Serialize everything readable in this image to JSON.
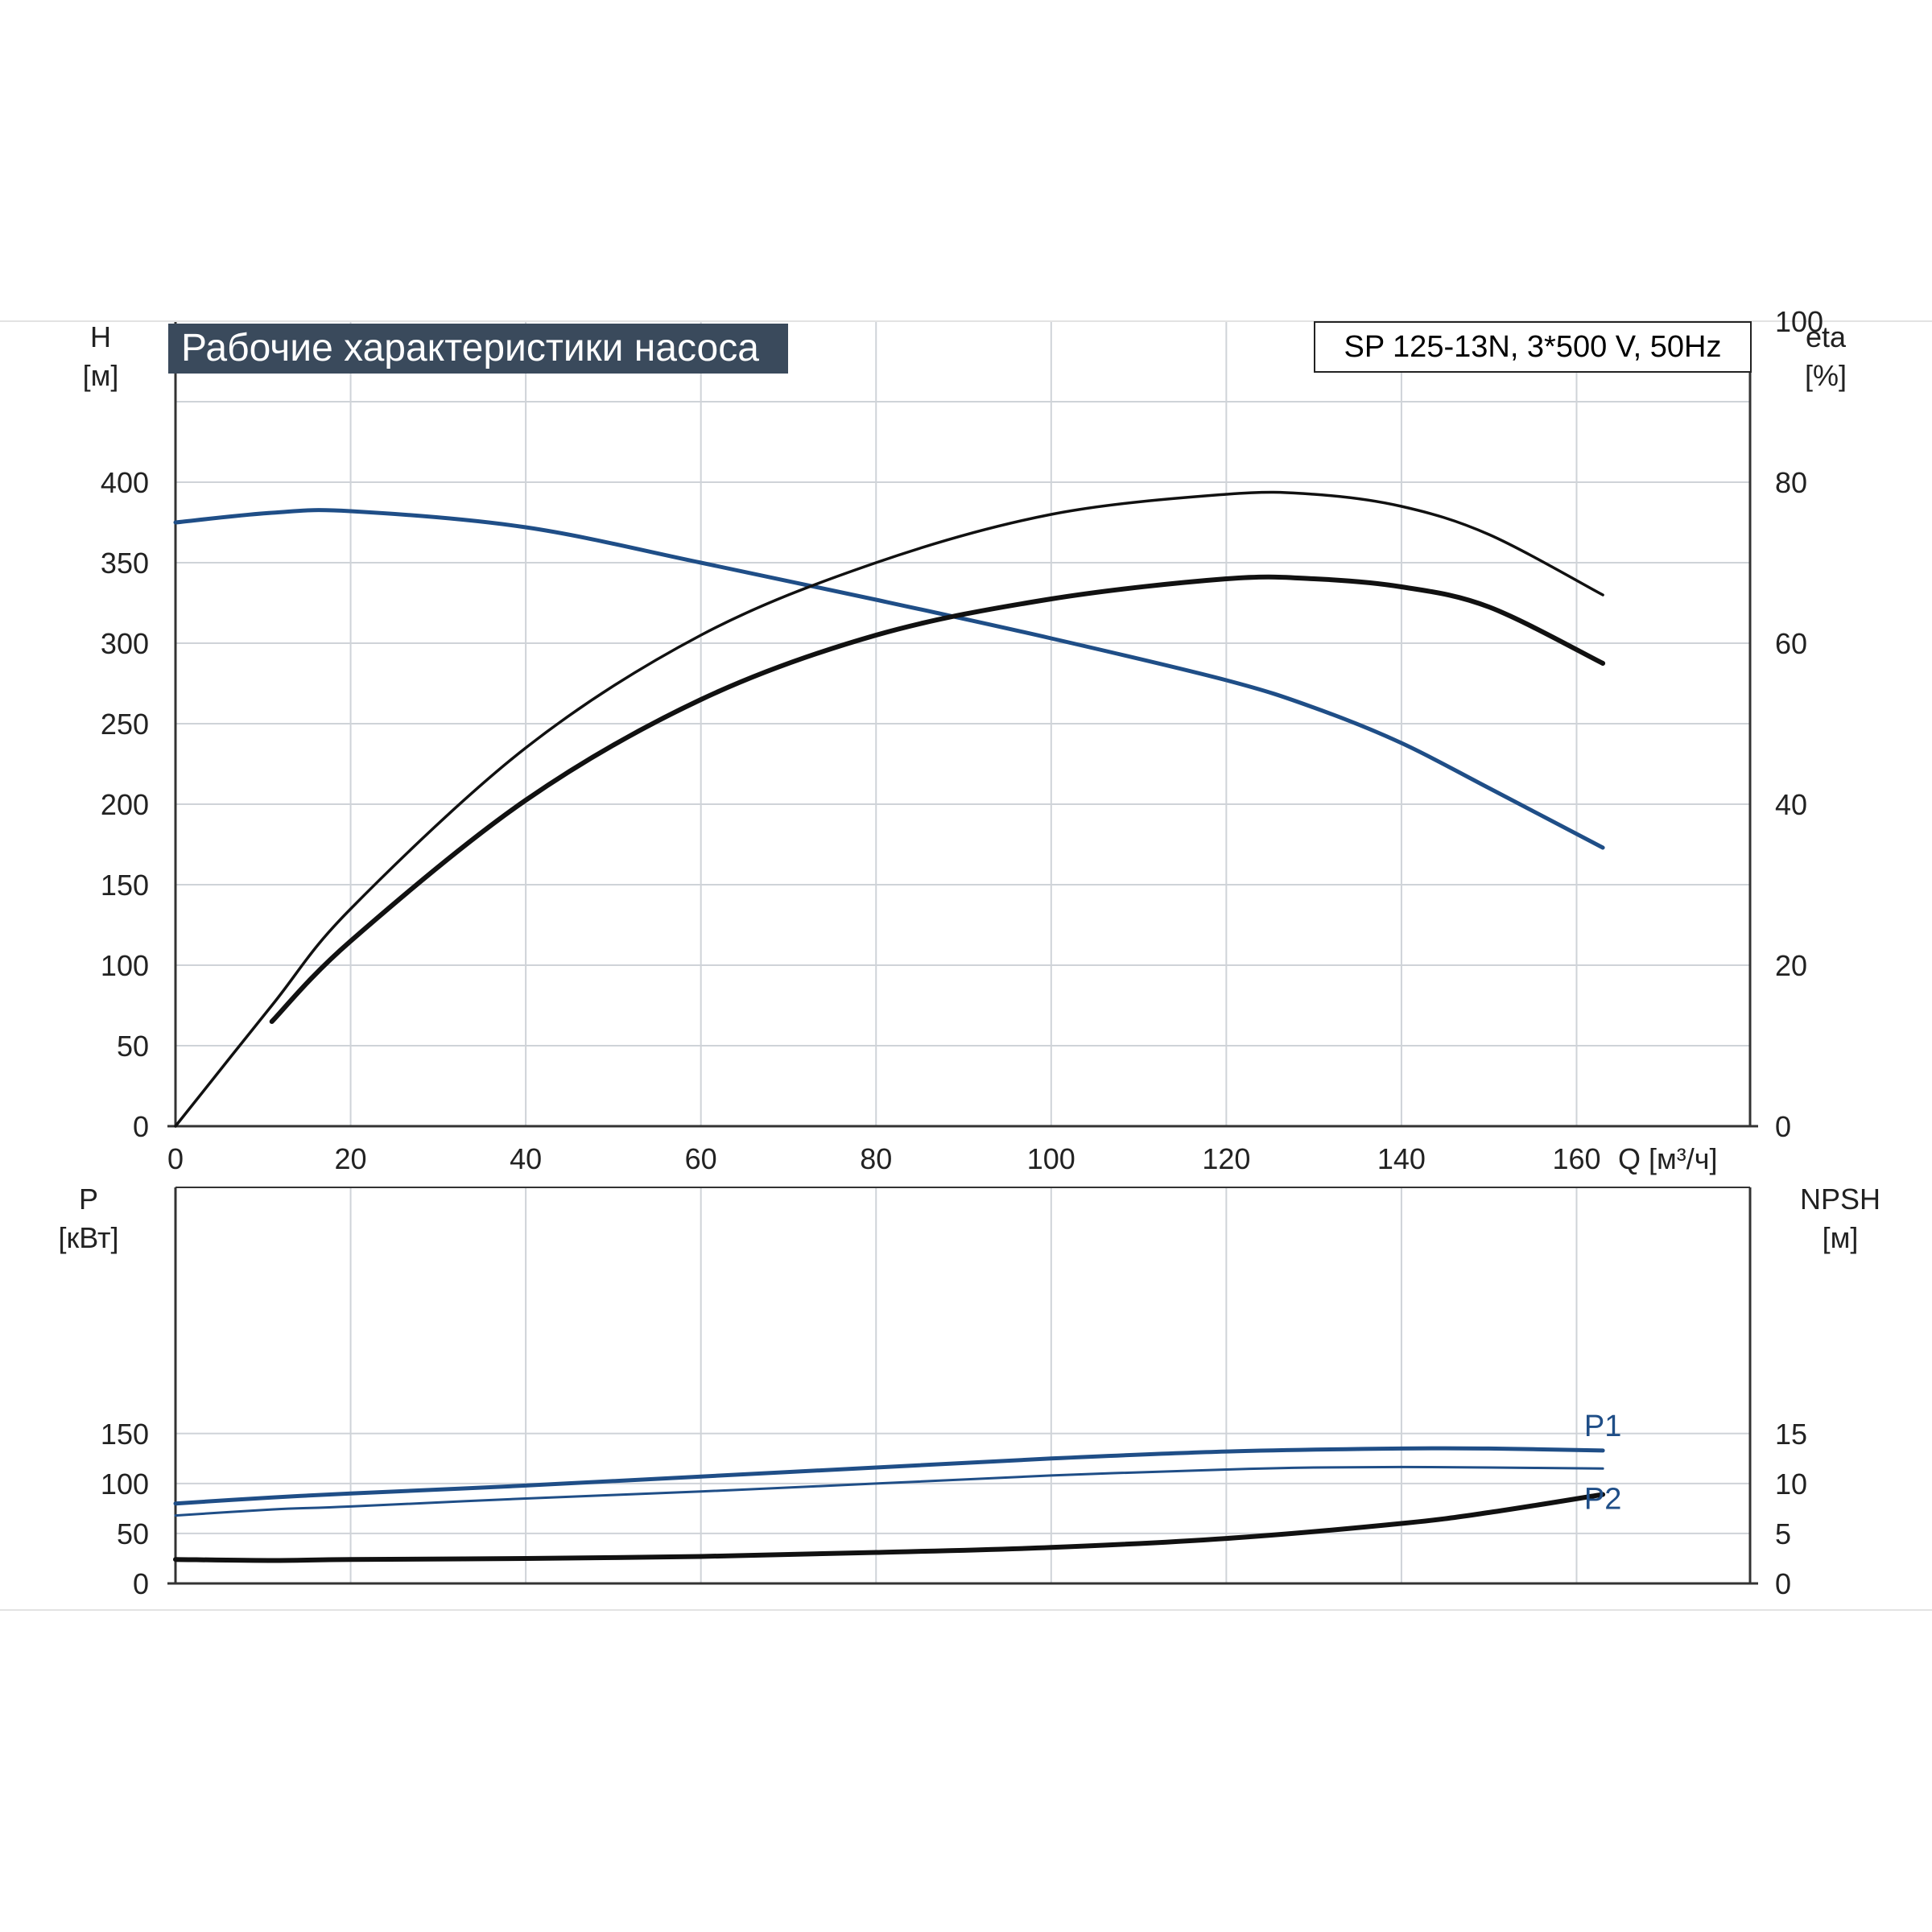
{
  "title": "Рабочие характеристики насоса",
  "model": "SP 125-13N, 3*500 V, 50Hz",
  "colors": {
    "blue": "#1f4e87",
    "black": "#111111",
    "grid": "#cfd3d8",
    "axis": "#333333",
    "title_bg": "#3a4a5c"
  },
  "top_left_axis": {
    "name": "H",
    "unit": "[м]"
  },
  "top_right_axis": {
    "name": "eta",
    "unit": "[%]"
  },
  "bottom_left_axis": {
    "name": "P",
    "unit": "[кВт]"
  },
  "bottom_right_axis": {
    "name": "NPSH",
    "unit": "[м]"
  },
  "x_axis_label": "Q [м³/ч]",
  "chart_data": [
    {
      "type": "line",
      "panel": "top",
      "x_label": "Q [м³/ч]",
      "xlim": [
        0,
        180
      ],
      "x_ticks": [
        0,
        20,
        40,
        60,
        80,
        100,
        120,
        140,
        160
      ],
      "y_left": {
        "label": "H [м]",
        "lim": [
          0,
          450
        ],
        "ticks": [
          0,
          50,
          100,
          150,
          200,
          250,
          300,
          350,
          400
        ]
      },
      "y_right": {
        "label": "eta [%]",
        "lim": [
          0,
          100
        ],
        "ticks": [
          0,
          20,
          40,
          60,
          80,
          100
        ]
      },
      "grid": true,
      "series": [
        {
          "key": "H",
          "axis": "left",
          "color": "#1f4e87",
          "points": [
            [
              0,
              375
            ],
            [
              11,
              381
            ],
            [
              20,
              382
            ],
            [
              40,
              372
            ],
            [
              60,
              350
            ],
            [
              80,
              327
            ],
            [
              100,
              303
            ],
            [
              120,
              277
            ],
            [
              130,
              260
            ],
            [
              140,
              238
            ],
            [
              150,
              210
            ],
            [
              163,
              173
            ]
          ]
        },
        {
          "key": "eta_hydraulic",
          "axis": "right",
          "color": "#111111",
          "points": [
            [
              0,
              0
            ],
            [
              11,
              15
            ],
            [
              20,
              27
            ],
            [
              40,
              47
            ],
            [
              60,
              61
            ],
            [
              80,
              70
            ],
            [
              100,
              76
            ],
            [
              120,
              78.5
            ],
            [
              130,
              78.5
            ],
            [
              140,
              77
            ],
            [
              150,
              73.5
            ],
            [
              163,
              66
            ]
          ]
        },
        {
          "key": "eta_total",
          "axis": "right",
          "color": "#111111",
          "points": [
            [
              11,
              13
            ],
            [
              20,
              23
            ],
            [
              40,
              40.5
            ],
            [
              60,
              53
            ],
            [
              80,
              61
            ],
            [
              100,
              65.5
            ],
            [
              120,
              68
            ],
            [
              130,
              68
            ],
            [
              140,
              67
            ],
            [
              150,
              64.5
            ],
            [
              163,
              57.5
            ]
          ]
        }
      ]
    },
    {
      "type": "line",
      "panel": "bottom",
      "xlim": [
        0,
        180
      ],
      "y_left": {
        "label": "P [кВт]",
        "lim": [
          0,
          200
        ],
        "ticks": [
          0,
          50,
          100,
          150
        ]
      },
      "y_right": {
        "label": "NPSH [м]",
        "lim": [
          0,
          20
        ],
        "ticks": [
          0,
          5,
          10,
          15
        ]
      },
      "grid": true,
      "series": [
        {
          "key": "P1",
          "name": "P1",
          "axis": "left",
          "color": "#1f4e87",
          "points": [
            [
              0,
              80
            ],
            [
              11,
              86
            ],
            [
              20,
              90
            ],
            [
              40,
              98
            ],
            [
              60,
              107
            ],
            [
              80,
              116
            ],
            [
              100,
              125
            ],
            [
              120,
              132
            ],
            [
              140,
              135
            ],
            [
              150,
              135
            ],
            [
              163,
              133
            ]
          ]
        },
        {
          "key": "P2",
          "name": "P2",
          "axis": "left",
          "color": "#1f4e87",
          "points": [
            [
              0,
              68
            ],
            [
              11,
              74
            ],
            [
              20,
              77
            ],
            [
              40,
              85
            ],
            [
              60,
              92
            ],
            [
              80,
              100
            ],
            [
              100,
              108
            ],
            [
              120,
              114
            ],
            [
              130,
              116
            ],
            [
              140,
              116.5
            ],
            [
              150,
              116
            ],
            [
              163,
              115
            ]
          ]
        },
        {
          "key": "NPSH",
          "axis": "right",
          "color": "#111111",
          "points": [
            [
              0,
              2.4
            ],
            [
              11,
              2.3
            ],
            [
              20,
              2.4
            ],
            [
              40,
              2.5
            ],
            [
              60,
              2.7
            ],
            [
              80,
              3.1
            ],
            [
              100,
              3.6
            ],
            [
              120,
              4.5
            ],
            [
              140,
              6.0
            ],
            [
              150,
              7.1
            ],
            [
              163,
              8.9
            ]
          ]
        }
      ]
    }
  ]
}
